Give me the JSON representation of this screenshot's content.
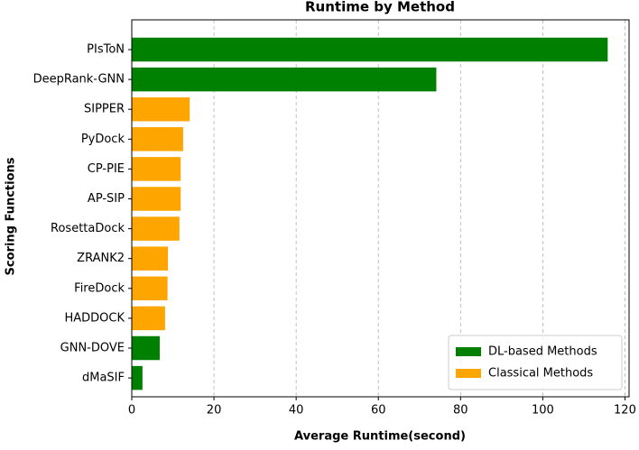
{
  "chart_data": {
    "type": "barh",
    "title": "Runtime by Method",
    "x_label": "Average Runtime(second)",
    "y_label": "Scoring Functions",
    "categories": [
      "PIsToN",
      "DeepRank-GNN",
      "SIPPER",
      "PyDock",
      "CP-PIE",
      "AP-SIP",
      "RosettaDock",
      "ZRANK2",
      "FireDock",
      "HADDOCK",
      "GNN-DOVE",
      "dMaSIF"
    ],
    "series": [
      {
        "name": "DL-based Methods",
        "color": "#008000",
        "values": [
          115.8,
          74.1,
          null,
          null,
          null,
          null,
          null,
          null,
          null,
          null,
          6.8,
          2.6
        ]
      },
      {
        "name": "Classical Methods",
        "color": "#ffa500",
        "values": [
          null,
          null,
          14.1,
          12.5,
          11.9,
          11.9,
          11.6,
          8.8,
          8.7,
          8.1,
          null,
          null
        ]
      }
    ],
    "xlim": [
      0,
      121
    ],
    "xticks": [
      0,
      20,
      40,
      60,
      80,
      100,
      120
    ],
    "grid": true,
    "legend": "lower right"
  }
}
